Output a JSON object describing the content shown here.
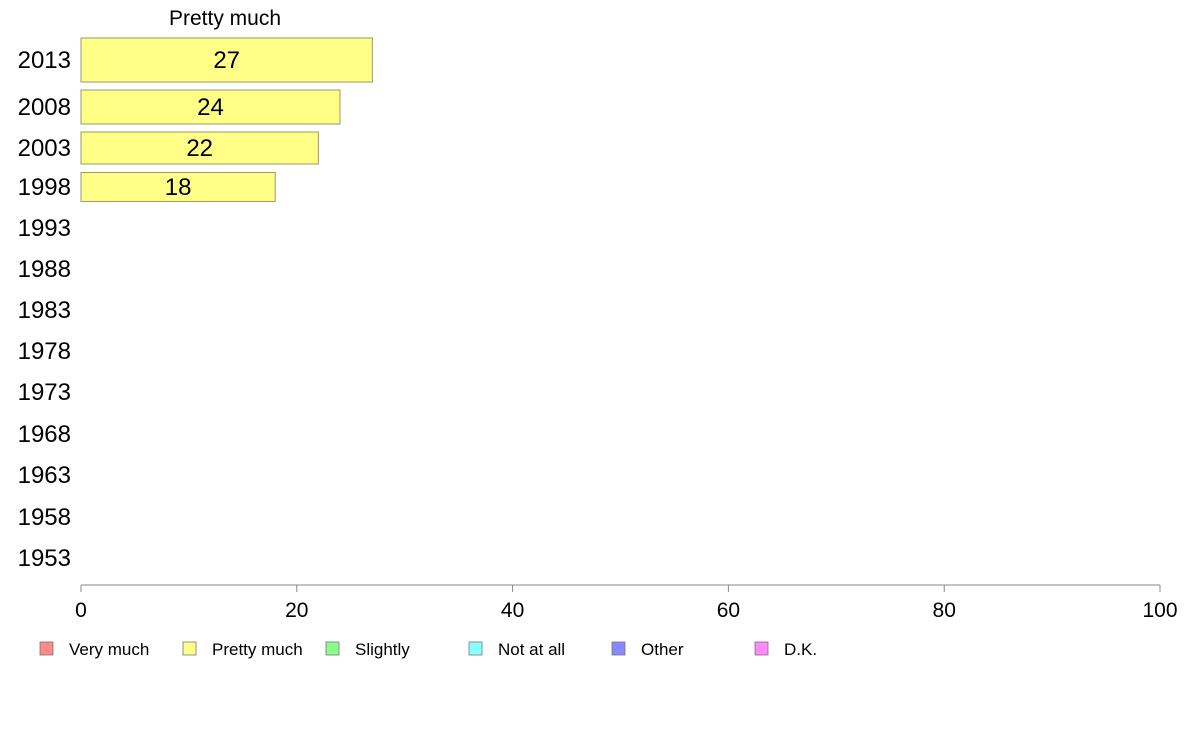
{
  "chart_data": {
    "type": "bar",
    "orientation": "horizontal",
    "title": "",
    "series_label": "Pretty much",
    "categories": [
      "2013",
      "2008",
      "2003",
      "1998",
      "1993",
      "1988",
      "1983",
      "1978",
      "1973",
      "1968",
      "1963",
      "1958",
      "1953"
    ],
    "series": [
      {
        "name": "Pretty much",
        "color": "#ffff88",
        "values": [
          27,
          24,
          22,
          18,
          null,
          null,
          null,
          null,
          null,
          null,
          null,
          null,
          null
        ]
      }
    ],
    "xlim": [
      0,
      100
    ],
    "xticks": [
      0,
      20,
      40,
      60,
      80,
      100
    ],
    "grid": false,
    "legend": {
      "placement": "bottom",
      "items": [
        {
          "label": "Very much",
          "color": "#ff8888"
        },
        {
          "label": "Pretty much",
          "color": "#ffff88"
        },
        {
          "label": "Slightly",
          "color": "#88ff88"
        },
        {
          "label": "Not at all",
          "color": "#88ffff"
        },
        {
          "label": "Other",
          "color": "#8888ff"
        },
        {
          "label": "D.K.",
          "color": "#ff88ff"
        }
      ]
    }
  }
}
